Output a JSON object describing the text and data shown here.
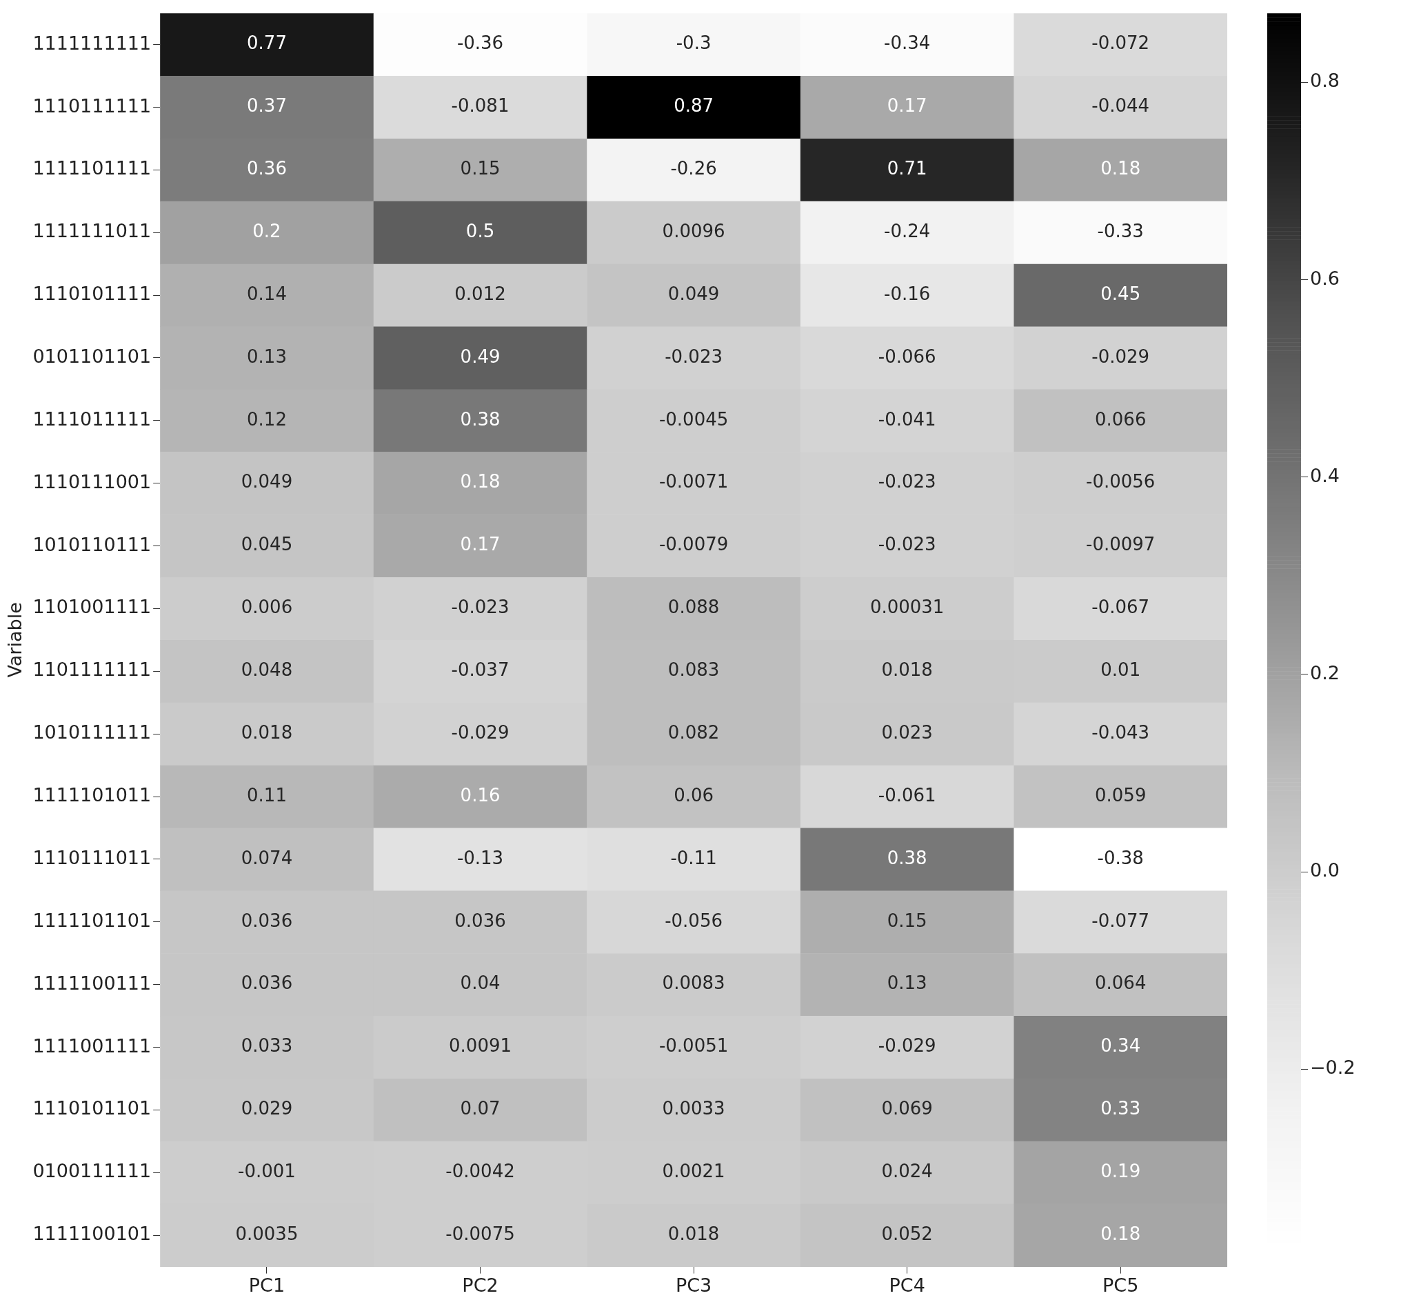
{
  "chart_data": {
    "type": "heatmap",
    "ylabel": "Variable",
    "categories": [
      "PC1",
      "PC2",
      "PC3",
      "PC4",
      "PC5"
    ],
    "y_categories": [
      "1111111111",
      "1110111111",
      "1111101111",
      "1111111011",
      "1110101111",
      "0101101101",
      "1111011111",
      "1110111001",
      "1010110111",
      "1101001111",
      "1101111111",
      "1010111111",
      "1111101011",
      "1110111011",
      "1111101101",
      "1111100111",
      "1111001111",
      "1110101101",
      "0100111111",
      "1111100101"
    ],
    "cells": [
      [
        0.77,
        -0.36,
        -0.3,
        -0.34,
        -0.072
      ],
      [
        0.37,
        -0.081,
        0.87,
        0.17,
        -0.044
      ],
      [
        0.36,
        0.15,
        -0.26,
        0.71,
        0.18
      ],
      [
        0.2,
        0.5,
        0.0096,
        -0.24,
        -0.33
      ],
      [
        0.14,
        0.012,
        0.049,
        -0.16,
        0.45
      ],
      [
        0.13,
        0.49,
        -0.023,
        -0.066,
        -0.029
      ],
      [
        0.12,
        0.38,
        -0.0045,
        -0.041,
        0.066
      ],
      [
        0.049,
        0.18,
        -0.0071,
        -0.023,
        -0.0056
      ],
      [
        0.045,
        0.17,
        -0.0079,
        -0.023,
        -0.0097
      ],
      [
        0.006,
        -0.023,
        0.088,
        0.00031,
        -0.067
      ],
      [
        0.048,
        -0.037,
        0.083,
        0.018,
        0.01
      ],
      [
        0.018,
        -0.029,
        0.082,
        0.023,
        -0.043
      ],
      [
        0.11,
        0.16,
        0.06,
        -0.061,
        0.059
      ],
      [
        0.074,
        -0.13,
        -0.11,
        0.38,
        -0.38
      ],
      [
        0.036,
        0.036,
        -0.056,
        0.15,
        -0.077
      ],
      [
        0.036,
        0.04,
        0.0083,
        0.13,
        0.064
      ],
      [
        0.033,
        0.0091,
        -0.0051,
        -0.029,
        0.34
      ],
      [
        0.029,
        0.07,
        0.0033,
        0.069,
        0.33
      ],
      [
        -0.001,
        -0.0042,
        0.0021,
        0.024,
        0.19
      ],
      [
        0.0035,
        -0.0075,
        0.018,
        0.052,
        0.18
      ]
    ],
    "data_labels": true,
    "clim": [
      -0.38,
      0.87
    ],
    "cticks": [
      {
        "value": -0.2,
        "label": "−0.2"
      },
      {
        "value": 0,
        "label": "0.0"
      },
      {
        "value": 0.2,
        "label": "0.2"
      },
      {
        "value": 0.4,
        "label": "0.4"
      },
      {
        "value": 0.6,
        "label": "0.6"
      },
      {
        "value": 0.8,
        "label": "0.8"
      }
    ]
  }
}
